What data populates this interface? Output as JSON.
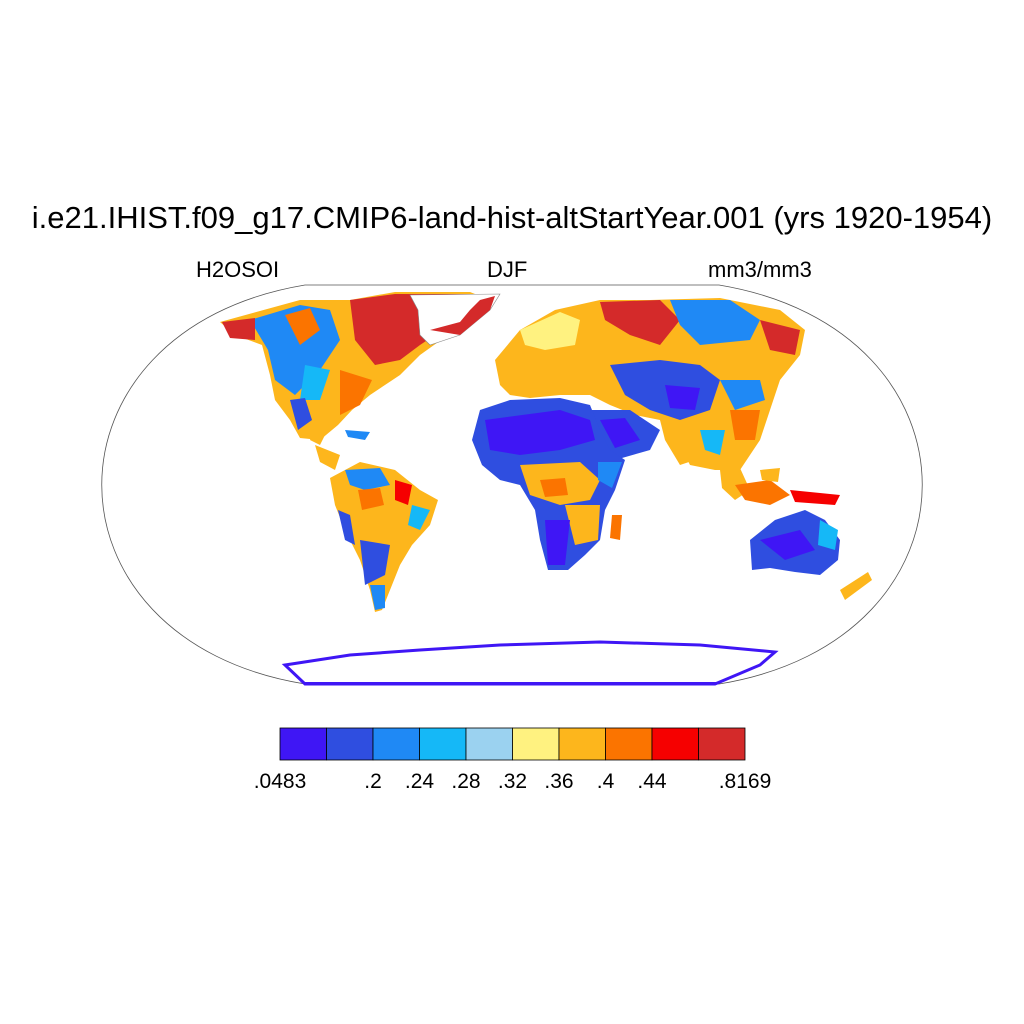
{
  "title": "i.e21.IHIST.f09_g17.CMIP6-land-hist-altStartYear.001 (yrs 1920-1954)",
  "subtitle_left": "H2OSOI",
  "subtitle_center": "DJF",
  "subtitle_right": "mm3/mm3",
  "colorbar": {
    "colors": [
      "#3f16f5",
      "#2f4ee0",
      "#1f89f5",
      "#15b8f7",
      "#9bd2f0",
      "#fff280",
      "#fdb61c",
      "#fb7400",
      "#f60000",
      "#d42a2a"
    ],
    "labels": [
      ".0483",
      "",
      ".2",
      ".24",
      ".28",
      ".32",
      ".36",
      ".4",
      ".44",
      "",
      ".8169"
    ]
  }
}
